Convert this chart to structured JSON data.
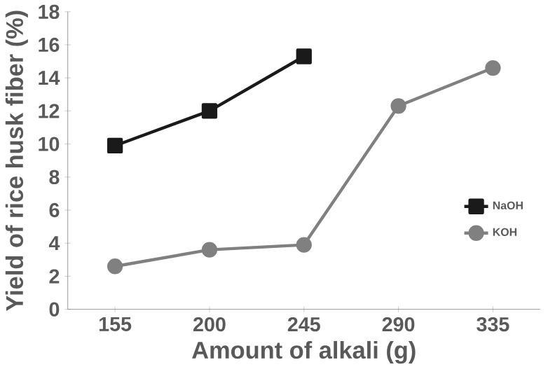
{
  "chart_data": {
    "type": "line",
    "xlabel": "Amount of alkali (g)",
    "ylabel": "Yield of rice husk fiber (%)",
    "categories": [
      "155",
      "200",
      "245",
      "290",
      "335"
    ],
    "ylim": [
      0,
      18
    ],
    "yticks": [
      0,
      2,
      4,
      6,
      8,
      10,
      12,
      14,
      16,
      18
    ],
    "series": [
      {
        "name": "NaOH",
        "color": "#1a1a1a",
        "marker": "square",
        "values": [
          9.9,
          12.0,
          15.3,
          null,
          null
        ]
      },
      {
        "name": "KOH",
        "color": "#808080",
        "marker": "circle",
        "values": [
          2.6,
          3.6,
          3.9,
          12.3,
          14.6
        ]
      }
    ],
    "grid": false,
    "legend": "right"
  }
}
